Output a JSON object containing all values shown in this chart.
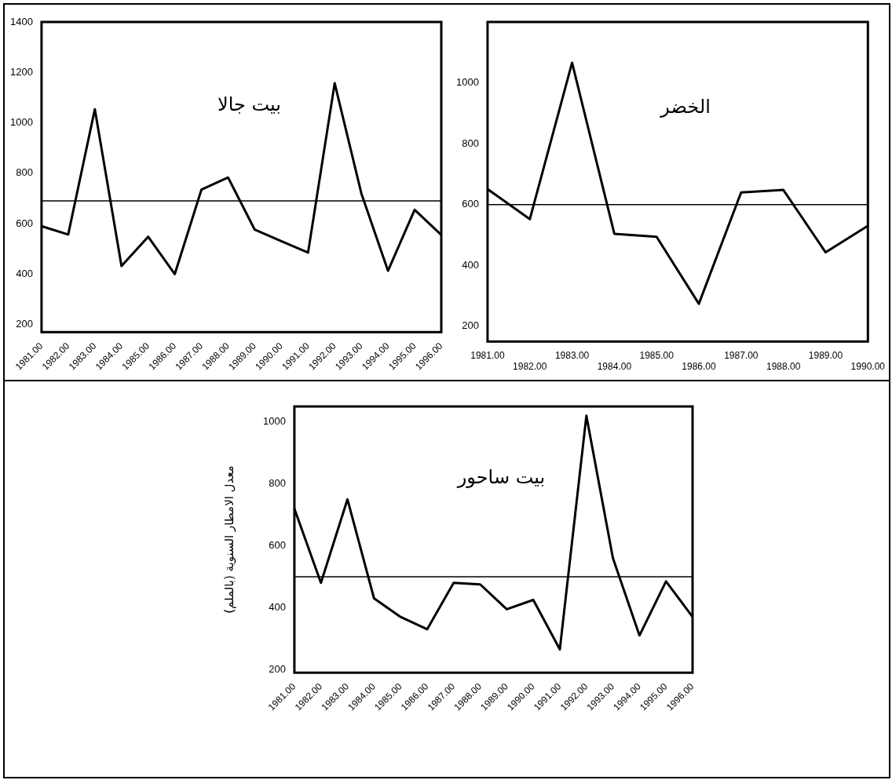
{
  "chart_data": [
    {
      "type": "line",
      "title": "بيت جالا",
      "categories": [
        "1981.00",
        "1982.00",
        "1983.00",
        "1984.00",
        "1985.00",
        "1986.00",
        "1987.00",
        "1988.00",
        "1989.00",
        "1990.00",
        "1991.00",
        "1992.00",
        "1993.00",
        "1994.00",
        "1995.00",
        "1996.00"
      ],
      "series": [
        {
          "color": "#000000",
          "values": [
            590,
            557,
            1054,
            432,
            548,
            400,
            735,
            783,
            576,
            530,
            485,
            1157,
            720,
            413,
            655,
            555
          ]
        }
      ],
      "ylim": [
        170,
        1400
      ],
      "yticks": [
        200,
        400,
        600,
        800,
        1000,
        1200,
        1400
      ],
      "ref_lines": [
        {
          "axis": "y",
          "value": 690,
          "color": "#000000"
        }
      ],
      "grid": false,
      "legend": false,
      "marker": "none"
    },
    {
      "type": "line",
      "title": "الخضر",
      "categories": [
        "1981.00",
        "1982.00",
        "1983.00",
        "1984.00",
        "1985.00",
        "1986.00",
        "1987.00",
        "1988.00",
        "1989.00",
        "1990.00"
      ],
      "series": [
        {
          "color": "#000000",
          "values": [
            651,
            552,
            1066,
            504,
            494,
            274,
            640,
            648,
            443,
            530
          ]
        }
      ],
      "ylim": [
        150,
        1200
      ],
      "yticks": [
        200,
        400,
        600,
        800,
        1000
      ],
      "ref_lines": [
        {
          "axis": "y",
          "value": 600,
          "color": "#000000"
        }
      ],
      "grid": false,
      "legend": false,
      "marker": "none"
    },
    {
      "type": "line",
      "title": "بيت ساحور",
      "ylabel": "معدل الامطار السنوية (بالملم)",
      "categories": [
        "1981.00",
        "1982.00",
        "1983.00",
        "1984.00",
        "1985.00",
        "1986.00",
        "1987.00",
        "1988.00",
        "1989.00",
        "1990.00",
        "1991.00",
        "1992.00",
        "1993.00",
        "1994.00",
        "1995.00",
        "1996.00"
      ],
      "series": [
        {
          "color": "#000000",
          "values": [
            720,
            480,
            750,
            430,
            370,
            330,
            480,
            475,
            395,
            425,
            265,
            1020,
            560,
            310,
            485,
            370
          ]
        }
      ],
      "ylim": [
        190,
        1050
      ],
      "yticks": [
        200,
        400,
        600,
        800,
        1000
      ],
      "ref_lines": [
        {
          "axis": "y",
          "value": 500,
          "color": "#000000"
        }
      ],
      "grid": false,
      "legend": false,
      "marker": "none"
    }
  ]
}
